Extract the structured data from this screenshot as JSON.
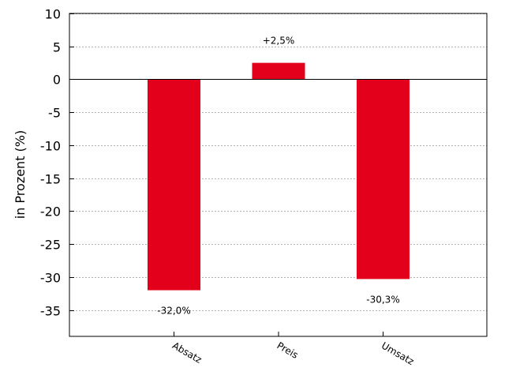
{
  "chart_data": {
    "type": "bar",
    "categories": [
      "Absatz",
      "Preis",
      "Umsatz"
    ],
    "values": [
      -32.0,
      2.5,
      -30.3
    ],
    "data_labels": [
      "-32,0%",
      "+2,5%",
      "-30,3%"
    ],
    "title": "",
    "xlabel": "",
    "ylabel": "in Prozent (%)",
    "ylim": [
      -39,
      10
    ],
    "yticks": [
      10,
      5,
      0,
      -5,
      -10,
      -15,
      -20,
      -25,
      -30,
      -35
    ],
    "grid": true,
    "legend": "none",
    "colors": {
      "bar": "#e2001a",
      "grid": "#b0b0b0",
      "axis": "#000000",
      "zero_line": "#000000"
    }
  }
}
